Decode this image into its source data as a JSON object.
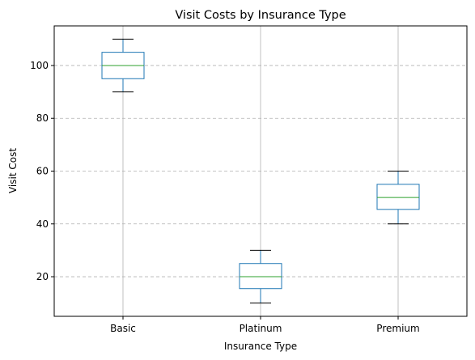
{
  "chart_data": {
    "type": "box",
    "title": "Visit Costs by Insurance Type",
    "xlabel": "Insurance Type",
    "ylabel": "Visit Cost",
    "ylim": [
      5,
      115
    ],
    "yticks": [
      20,
      40,
      60,
      80,
      100
    ],
    "grid": {
      "x": "solid",
      "y": "dashed"
    },
    "categories": [
      "Basic",
      "Platinum",
      "Premium"
    ],
    "boxes": [
      {
        "category": "Basic",
        "whisker_low": 90,
        "q1": 95,
        "median": 100,
        "q3": 105,
        "whisker_high": 110
      },
      {
        "category": "Platinum",
        "whisker_low": 10,
        "q1": 15.5,
        "median": 20,
        "q3": 25,
        "whisker_high": 30
      },
      {
        "category": "Premium",
        "whisker_low": 40,
        "q1": 45.5,
        "median": 50,
        "q3": 55,
        "whisker_high": 60
      }
    ],
    "colors": {
      "box": "#1f77b4",
      "median": "#2ca02c",
      "whisker": "#1f77b4",
      "cap": "#000000",
      "grid": "#b0b0b0"
    }
  }
}
